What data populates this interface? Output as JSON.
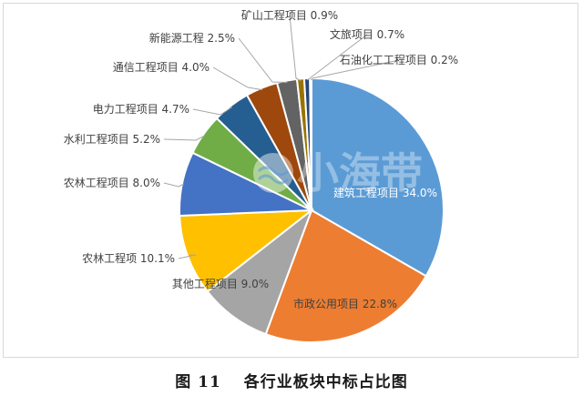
{
  "caption": {
    "number": "图 11",
    "title": "各行业板块中标占比图"
  },
  "watermark": {
    "text": "小海带"
  },
  "chart_data": {
    "type": "pie",
    "title": "",
    "slices": [
      {
        "label": "建筑工程项目",
        "value": 34.0,
        "display": "34.0%",
        "color": "#5b9bd5"
      },
      {
        "label": "市政公用项目",
        "value": 22.8,
        "display": "22.8%",
        "color": "#ed7d31"
      },
      {
        "label": "其他工程项目",
        "value": 9.0,
        "display": "9.0%",
        "color": "#a5a5a5"
      },
      {
        "label": "农林工程项",
        "value": 10.1,
        "display": "10.1%",
        "color": "#ffc000"
      },
      {
        "label": "农林工程项目",
        "value": 8.0,
        "display": "8.0%",
        "color": "#4472c4"
      },
      {
        "label": "水利工程项目",
        "value": 5.2,
        "display": "5.2%",
        "color": "#70ad47"
      },
      {
        "label": "电力工程项目",
        "value": 4.7,
        "display": "4.7%",
        "color": "#255e91"
      },
      {
        "label": "通信工程项目",
        "value": 4.0,
        "display": "4.0%",
        "color": "#9e480e"
      },
      {
        "label": "新能源工程",
        "value": 2.5,
        "display": "2.5%",
        "color": "#636363"
      },
      {
        "label": "矿山工程项目",
        "value": 0.9,
        "display": "0.9%",
        "color": "#997300"
      },
      {
        "label": "文旅项目",
        "value": 0.7,
        "display": "0.7%",
        "color": "#264478"
      },
      {
        "label": "石油化工工程项目",
        "value": 0.2,
        "display": "0.2%",
        "color": "#43682b"
      }
    ]
  }
}
